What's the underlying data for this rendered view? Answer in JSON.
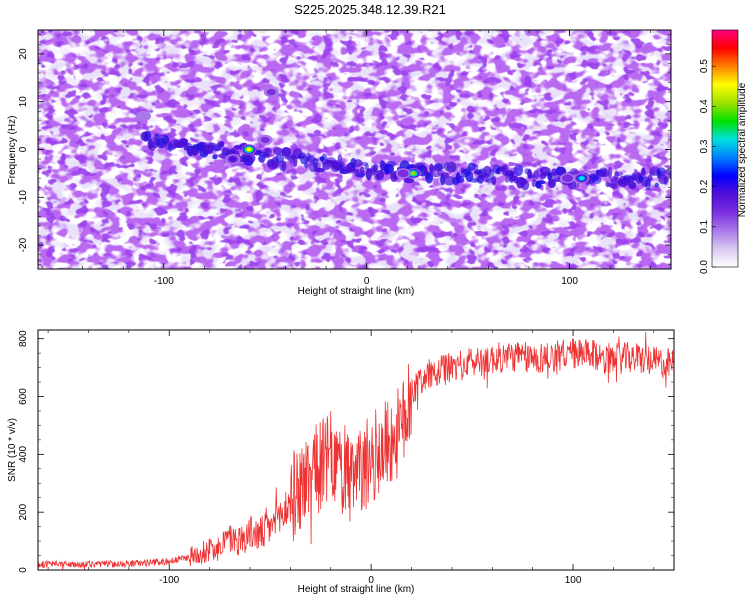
{
  "chart_data": [
    {
      "type": "heatmap",
      "title": "S225.2025.348.12.39.R21",
      "xlabel": "Height of straight line (km)",
      "ylabel": "Frequency (Hz)",
      "xlim": [
        -162,
        150
      ],
      "ylim": [
        -25,
        25
      ],
      "x_ticks": [
        -100,
        0,
        100
      ],
      "y_ticks": [
        20,
        10,
        0,
        -10,
        -20
      ],
      "colorbar": {
        "label": "Normalized spectral amplitude",
        "range": [
          0,
          0.59
        ],
        "ticks": [
          0.0,
          0.1,
          0.2,
          0.3,
          0.4,
          0.5
        ],
        "colors": [
          "#ffffff",
          "#d8c8f0",
          "#a878e8",
          "#7a2ee0",
          "#5010d8",
          "#0000ff",
          "#0080ff",
          "#00e0e0",
          "#00e000",
          "#a0e000",
          "#ffff00",
          "#ff8000",
          "#ff0000",
          "#ff0080"
        ]
      },
      "ridge": {
        "x": [
          -160,
          -120,
          -80,
          -60,
          -40,
          -20,
          0,
          20,
          40,
          60,
          80,
          100,
          120,
          150
        ],
        "frequency": [
          6,
          3,
          0,
          -1,
          -2,
          -3,
          -4,
          -5,
          -5,
          -5,
          -6,
          -6,
          -6,
          -6
        ]
      },
      "peaks": [
        {
          "x": -58,
          "frequency": 0,
          "amplitude": 0.45
        },
        {
          "x": -66,
          "frequency": -2,
          "amplitude": 0.2
        },
        {
          "x": 23,
          "frequency": -5,
          "amplitude": 0.4
        },
        {
          "x": 18,
          "frequency": -5,
          "amplitude": 0.15
        },
        {
          "x": 106,
          "frequency": -6,
          "amplitude": 0.3
        },
        {
          "x": 99,
          "frequency": -6,
          "amplitude": 0.15
        },
        {
          "x": -50,
          "frequency": 2,
          "amplitude": 0.12
        },
        {
          "x": -47,
          "frequency": 12,
          "amplitude": 0.12
        },
        {
          "x": -110,
          "frequency": 7,
          "amplitude": 0.1
        }
      ]
    },
    {
      "type": "line",
      "xlabel": "Height of straight line (km)",
      "ylabel": "SNR (10 * v/v)",
      "xlim": [
        -165,
        150
      ],
      "ylim": [
        0,
        830
      ],
      "x_ticks": [
        -100,
        0,
        100
      ],
      "y_ticks": [
        0,
        200,
        400,
        600,
        800
      ],
      "line_color": "#ee3333",
      "series": [
        {
          "x": [
            -165,
            -150,
            -130,
            -110,
            -100,
            -90,
            -80,
            -75,
            -70,
            -65,
            -60,
            -55,
            -50,
            -45,
            -40,
            -35,
            -30,
            -25,
            -20,
            -15,
            -10,
            -5,
            0,
            5,
            10,
            15,
            20,
            25,
            30,
            40,
            50,
            60,
            70,
            80,
            90,
            100,
            110,
            120,
            130,
            140,
            150
          ],
          "values": [
            20,
            20,
            20,
            25,
            30,
            45,
            70,
            90,
            110,
            100,
            130,
            120,
            150,
            180,
            240,
            290,
            330,
            360,
            390,
            350,
            300,
            340,
            380,
            420,
            450,
            480,
            620,
            660,
            680,
            700,
            720,
            730,
            740,
            730,
            740,
            750,
            740,
            730,
            735,
            720,
            710
          ]
        }
      ]
    }
  ]
}
